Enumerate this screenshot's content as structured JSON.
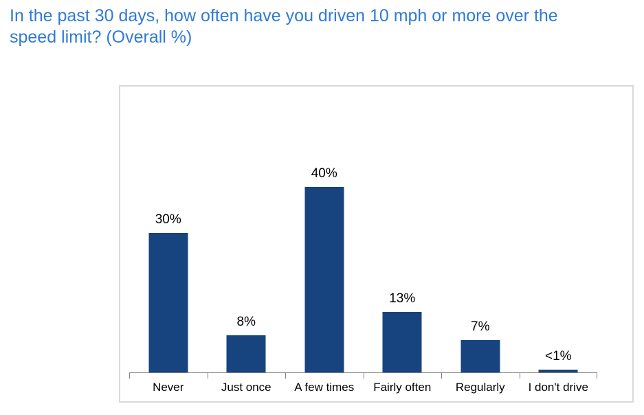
{
  "title": {
    "line1": "In the past 30 days, how often have you driven 10 mph or more over the",
    "line2": "speed limit? (Overall %)"
  },
  "colors": {
    "title_blue": "#2F7BD4",
    "bar_navy": "#17447E",
    "chart_border": "#D9D9D9",
    "axis_gray": "#808080",
    "label_black": "#000000"
  },
  "chart_data": {
    "type": "bar",
    "title": "In the past 30 days, how often have you driven 10 mph or more over the speed limit? (Overall %)",
    "categories": [
      "Never",
      "Just once",
      "A few times",
      "Fairly often",
      "Regularly",
      "I don't drive"
    ],
    "values": [
      30,
      8,
      40,
      13,
      7,
      0.5
    ],
    "value_labels": [
      "30%",
      "8%",
      "40%",
      "13%",
      "7%",
      "<1%"
    ],
    "xlabel": "",
    "ylabel": "",
    "ylim": [
      0,
      45
    ],
    "grid": false,
    "legend": "none",
    "bar_color": "#17447E"
  }
}
